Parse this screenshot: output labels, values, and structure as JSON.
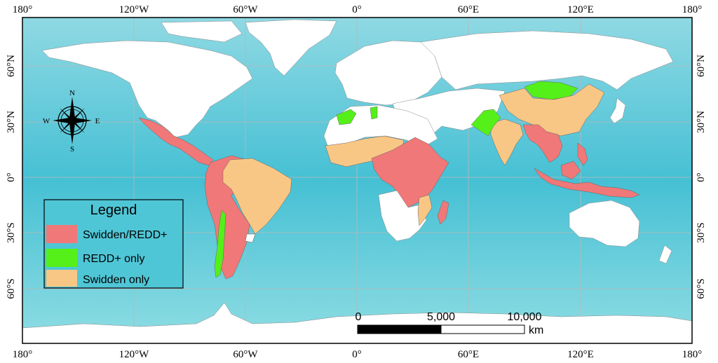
{
  "map": {
    "ticks": {
      "top": [
        "180°",
        "120°W",
        "60°W",
        "0°",
        "60°E",
        "120°E",
        "180°"
      ],
      "bottom": [
        "180°",
        "120°W",
        "60°W",
        "0°",
        "60°E",
        "120°E",
        "180°"
      ],
      "left": [
        "60°N",
        "30°N",
        "0°",
        "30°S",
        "60°S"
      ],
      "right": [
        "60°N",
        "30°N",
        "0°",
        "30°S",
        "60°S"
      ]
    },
    "legend": {
      "title": "Legend",
      "items": [
        {
          "label": "Swidden/REDD+",
          "color": "#f07878"
        },
        {
          "label": "REDD+ only",
          "color": "#55f01a"
        },
        {
          "label": "Swidden only",
          "color": "#f9c785"
        }
      ]
    },
    "scale_bar": {
      "labels": [
        "0",
        "5,000",
        "10,000"
      ],
      "unit": "km"
    },
    "compass": {
      "n": "N",
      "s": "S",
      "e": "E",
      "w": "W"
    },
    "colors": {
      "ocean": "#4fc6d6",
      "ocean_shallow": "#8ee1e6",
      "land_other": "#ffffff",
      "swidden_redd": "#f07878",
      "redd_only": "#55f01a",
      "swidden_only": "#f9c785"
    }
  }
}
